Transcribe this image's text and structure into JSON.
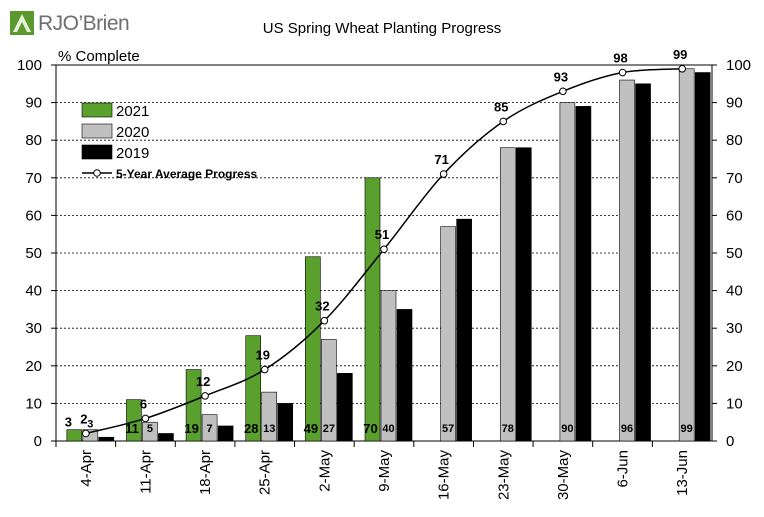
{
  "brand": {
    "logo_text": "RJO’Brien",
    "color_green": "#5a9a2c",
    "color_grey": "#6d6e71"
  },
  "chart_data": {
    "type": "bar",
    "title": "US Spring Wheat Planting Progress",
    "ylabel": "% Complete",
    "xlabel": "",
    "ylim": [
      0,
      100
    ],
    "yticks": [
      0,
      10,
      20,
      30,
      40,
      50,
      60,
      70,
      80,
      90,
      100
    ],
    "grid": true,
    "secondary_axis": true,
    "legend_position": "top-left",
    "categories": [
      "4-Apr",
      "11-Apr",
      "18-Apr",
      "25-Apr",
      "2-May",
      "9-May",
      "16-May",
      "23-May",
      "30-May",
      "6-Jun",
      "13-Jun"
    ],
    "series": [
      {
        "name": "2021",
        "kind": "bar",
        "color": "#5aa02c",
        "values": [
          3,
          11,
          19,
          28,
          49,
          70,
          null,
          null,
          null,
          null,
          null
        ]
      },
      {
        "name": "2020",
        "kind": "bar",
        "color": "#c0c0c0",
        "values": [
          3,
          5,
          7,
          13,
          27,
          40,
          57,
          78,
          90,
          96,
          99
        ]
      },
      {
        "name": "2019",
        "kind": "bar",
        "color": "#000000",
        "values": [
          1,
          2,
          4,
          10,
          18,
          35,
          59,
          78,
          89,
          95,
          98
        ]
      },
      {
        "name": "5-Year Average Progress",
        "kind": "line",
        "color": "#000000",
        "values": [
          2,
          6,
          12,
          19,
          32,
          51,
          71,
          85,
          93,
          98,
          99
        ]
      }
    ]
  }
}
